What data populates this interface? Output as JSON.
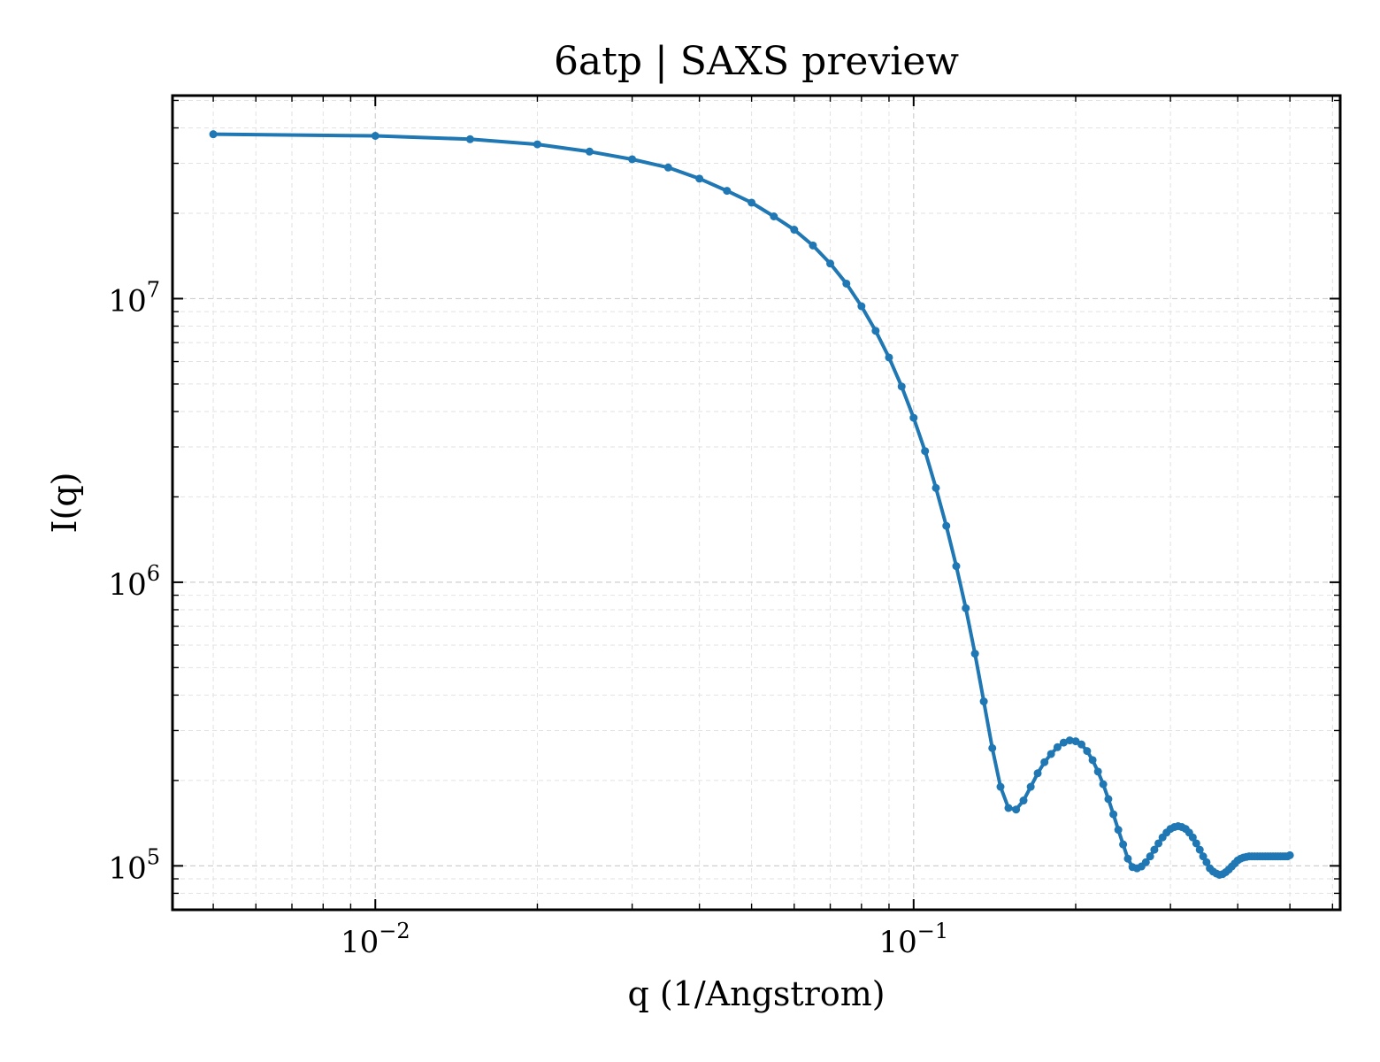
{
  "chart_data": {
    "type": "line",
    "title": "6atp | SAXS preview",
    "xlabel": "q (1/Angstrom)",
    "ylabel": "I(q)",
    "xscale": "log",
    "yscale": "log",
    "xlim": [
      0.0042,
      0.62
    ],
    "ylim": [
      70000,
      52000000
    ],
    "grid": true,
    "color": "#1f77b4",
    "x_ticks": [
      {
        "base": "10",
        "exp": "−2",
        "value": 0.01
      },
      {
        "base": "10",
        "exp": "−1",
        "value": 0.1
      }
    ],
    "y_ticks": [
      {
        "base": "10",
        "exp": "5",
        "value": 100000
      },
      {
        "base": "10",
        "exp": "6",
        "value": 1000000
      },
      {
        "base": "10",
        "exp": "7",
        "value": 10000000
      }
    ],
    "series": [
      {
        "x": [
          0.005,
          0.01,
          0.015,
          0.02,
          0.025,
          0.03,
          0.035,
          0.04,
          0.045,
          0.05,
          0.055,
          0.06,
          0.065,
          0.07,
          0.075,
          0.08,
          0.085,
          0.09,
          0.095,
          0.1,
          0.105,
          0.11,
          0.115,
          0.12,
          0.125,
          0.13,
          0.135,
          0.14,
          0.145,
          0.15,
          0.155,
          0.16,
          0.165,
          0.17,
          0.175,
          0.18,
          0.185,
          0.19,
          0.195,
          0.2,
          0.205,
          0.21,
          0.215,
          0.22,
          0.225,
          0.23,
          0.235,
          0.24,
          0.245,
          0.25,
          0.255,
          0.26,
          0.265,
          0.27,
          0.275,
          0.28,
          0.285,
          0.29,
          0.295,
          0.3,
          0.305,
          0.31,
          0.315,
          0.32,
          0.325,
          0.33,
          0.335,
          0.34,
          0.345,
          0.35,
          0.355,
          0.36,
          0.365,
          0.37,
          0.375,
          0.38,
          0.385,
          0.39,
          0.395,
          0.4,
          0.405,
          0.41,
          0.415,
          0.42,
          0.425,
          0.43,
          0.435,
          0.44,
          0.445,
          0.45,
          0.455,
          0.46,
          0.465,
          0.47,
          0.475,
          0.48,
          0.485,
          0.49,
          0.495,
          0.5
        ],
        "y": [
          38000000,
          37500000,
          36500000,
          35000000,
          33000000,
          31000000,
          29000000,
          26500000,
          24000000,
          21800000,
          19500000,
          17500000,
          15400000,
          13300000,
          11300000,
          9400000,
          7700000,
          6200000,
          4900000,
          3800000,
          2900000,
          2150000,
          1580000,
          1140000,
          810000,
          560000,
          380000,
          260000,
          190000,
          160000,
          158000,
          170000,
          190000,
          212000,
          232000,
          248000,
          262000,
          272000,
          277000,
          275000,
          268000,
          254000,
          236000,
          215000,
          194000,
          172000,
          152000,
          134000,
          119000,
          106000,
          99000,
          98000,
          99500,
          103000,
          108000,
          114000,
          120000,
          126000,
          131000,
          135000,
          137000,
          138000,
          137000,
          135000,
          131000,
          126000,
          120000,
          114000,
          108000,
          103000,
          98000,
          95500,
          94000,
          93000,
          93500,
          95000,
          97000,
          99500,
          102000,
          104500,
          106000,
          107000,
          107500,
          108000,
          108000,
          108000,
          108000,
          108000,
          108000,
          108000,
          108000,
          108000,
          108000,
          108000,
          108000,
          108000,
          108000,
          108000,
          108000,
          109000
        ]
      }
    ]
  }
}
